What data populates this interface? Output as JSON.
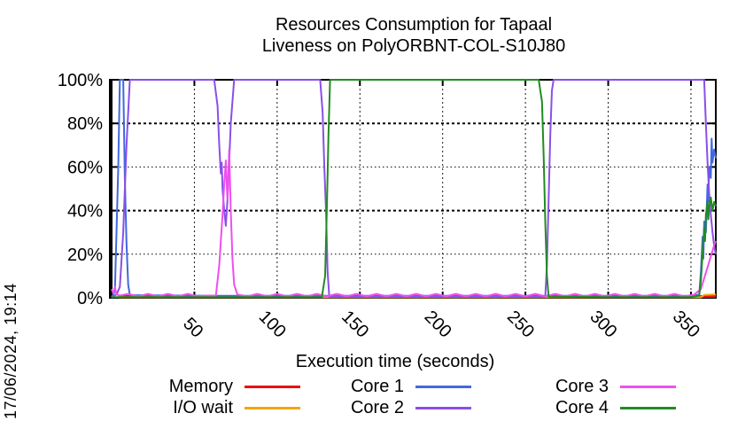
{
  "page": {
    "timestamp": "17/06/2024, 19:14"
  },
  "chart_data": {
    "type": "line",
    "title": "Resources Consumption for Tapaal",
    "subtitle": "Liveness on PolyORBNT-COL-S10J80",
    "xlabel": "Execution time (seconds)",
    "ylabel": "",
    "xlim": [
      0,
      365
    ],
    "ylim": [
      0,
      100
    ],
    "xticks": [
      50,
      100,
      150,
      200,
      250,
      300,
      350
    ],
    "yticks": [
      0,
      20,
      40,
      60,
      80,
      100
    ],
    "ytick_suffix": "%",
    "grid": true,
    "legend_position": "bottom",
    "series": [
      {
        "name": "Memory",
        "color": "#e81010",
        "width": 3,
        "points": [
          [
            4,
            0.6
          ],
          [
            365,
            0.6
          ]
        ]
      },
      {
        "name": "I/O wait",
        "color": "#f5a50a",
        "width": 2,
        "points": [
          [
            4,
            0.25
          ],
          [
            356,
            0.25
          ],
          [
            358,
            1.3
          ],
          [
            365,
            1.5
          ]
        ]
      },
      {
        "name": "Core 1",
        "color": "#4169e1",
        "width": 2,
        "points": [
          [
            0,
            0
          ],
          [
            2,
            3
          ],
          [
            4,
            60
          ],
          [
            5,
            100
          ],
          [
            7,
            100
          ],
          [
            8,
            55
          ],
          [
            9,
            25
          ],
          [
            10,
            6
          ],
          [
            11,
            1.2
          ],
          [
            60,
            0.9
          ],
          [
            120,
            0.9
          ],
          [
            180,
            0.9
          ],
          [
            240,
            0.9
          ],
          [
            300,
            0.9
          ],
          [
            350,
            0.9
          ],
          [
            355,
            1.5
          ],
          [
            356,
            12
          ],
          [
            357,
            28
          ],
          [
            357.5,
            18
          ],
          [
            358,
            35
          ],
          [
            359,
            30
          ],
          [
            360,
            52
          ],
          [
            360.5,
            44
          ],
          [
            361,
            60
          ],
          [
            362,
            55
          ],
          [
            362.5,
            73
          ],
          [
            363,
            62
          ],
          [
            364,
            68
          ],
          [
            365,
            64
          ]
        ]
      },
      {
        "name": "Core 2",
        "color": "#8a4fe8",
        "width": 2,
        "points": [
          [
            0,
            0.5
          ],
          [
            3,
            1.5
          ],
          [
            5,
            5
          ],
          [
            7,
            30
          ],
          [
            9,
            70
          ],
          [
            11,
            100
          ],
          [
            62,
            100
          ],
          [
            64,
            88
          ],
          [
            65,
            70
          ],
          [
            66,
            57
          ],
          [
            66.5,
            62
          ],
          [
            67,
            50
          ],
          [
            68,
            40
          ],
          [
            69,
            33
          ],
          [
            70,
            45
          ],
          [
            71,
            62
          ],
          [
            72,
            80
          ],
          [
            74,
            100
          ],
          [
            126,
            100
          ],
          [
            127.5,
            85
          ],
          [
            128.5,
            60
          ],
          [
            129.5,
            40
          ],
          [
            130.5,
            12
          ],
          [
            131.5,
            0.5
          ],
          [
            260,
            0.5
          ],
          [
            262,
            0.5
          ],
          [
            263,
            15
          ],
          [
            264,
            45
          ],
          [
            265,
            75
          ],
          [
            266,
            95
          ],
          [
            267,
            100
          ],
          [
            356,
            100
          ],
          [
            358,
            100
          ],
          [
            359,
            80
          ],
          [
            360,
            62
          ],
          [
            361,
            48
          ],
          [
            362,
            38
          ],
          [
            363,
            30
          ],
          [
            364,
            24
          ],
          [
            365,
            20
          ]
        ]
      },
      {
        "name": "Core 3",
        "color": "#ee4fee",
        "width": 2,
        "points": [
          [
            0,
            4
          ],
          [
            1,
            2
          ],
          [
            2,
            5
          ],
          [
            3,
            1.5
          ],
          [
            5,
            1
          ],
          [
            10,
            1.8
          ],
          [
            16,
            0.7
          ],
          [
            22,
            1.8
          ],
          [
            28,
            0.7
          ],
          [
            34,
            1.8
          ],
          [
            40,
            0.7
          ],
          [
            46,
            1.8
          ],
          [
            52,
            0.7
          ],
          [
            58,
            1
          ],
          [
            63,
            1
          ],
          [
            65,
            15
          ],
          [
            67,
            38
          ],
          [
            68,
            52
          ],
          [
            69,
            63
          ],
          [
            69.5,
            52
          ],
          [
            70,
            45
          ],
          [
            70.5,
            56
          ],
          [
            71,
            68
          ],
          [
            72,
            40
          ],
          [
            73,
            18
          ],
          [
            74,
            6
          ],
          [
            76,
            1.5
          ],
          [
            82,
            0.7
          ],
          [
            88,
            1.8
          ],
          [
            94,
            0.7
          ],
          [
            100,
            1.8
          ],
          [
            106,
            0.7
          ],
          [
            112,
            1.8
          ],
          [
            118,
            0.7
          ],
          [
            124,
            1.8
          ],
          [
            130,
            0.7
          ],
          [
            136,
            1.8
          ],
          [
            142,
            0.7
          ],
          [
            148,
            1.8
          ],
          [
            154,
            0.7
          ],
          [
            160,
            1.8
          ],
          [
            166,
            0.7
          ],
          [
            172,
            1.8
          ],
          [
            178,
            0.7
          ],
          [
            184,
            1.8
          ],
          [
            190,
            0.7
          ],
          [
            196,
            1.8
          ],
          [
            202,
            0.7
          ],
          [
            208,
            1.8
          ],
          [
            214,
            0.7
          ],
          [
            220,
            1.8
          ],
          [
            226,
            0.7
          ],
          [
            232,
            1.8
          ],
          [
            238,
            0.7
          ],
          [
            244,
            1.8
          ],
          [
            250,
            0.7
          ],
          [
            256,
            1.8
          ],
          [
            262,
            0.7
          ],
          [
            268,
            1.8
          ],
          [
            274,
            0.7
          ],
          [
            280,
            1.8
          ],
          [
            286,
            0.7
          ],
          [
            292,
            1.8
          ],
          [
            298,
            0.7
          ],
          [
            304,
            1.8
          ],
          [
            310,
            0.7
          ],
          [
            316,
            1.8
          ],
          [
            322,
            0.7
          ],
          [
            328,
            1.8
          ],
          [
            334,
            0.7
          ],
          [
            340,
            1.8
          ],
          [
            346,
            0.7
          ],
          [
            352,
            1.5
          ],
          [
            356,
            4
          ],
          [
            358,
            9
          ],
          [
            360,
            14
          ],
          [
            362,
            19
          ],
          [
            364,
            24
          ],
          [
            365,
            26
          ]
        ]
      },
      {
        "name": "Core 4",
        "color": "#228b22",
        "width": 2,
        "points": [
          [
            0,
            0.3
          ],
          [
            126,
            0.3
          ],
          [
            127,
            0.3
          ],
          [
            129,
            10
          ],
          [
            130,
            40
          ],
          [
            131,
            75
          ],
          [
            132,
            100
          ],
          [
            258,
            100
          ],
          [
            260,
            90
          ],
          [
            261,
            65
          ],
          [
            262,
            35
          ],
          [
            263,
            10
          ],
          [
            264,
            0.5
          ],
          [
            300,
            0.3
          ],
          [
            350,
            0.3
          ],
          [
            355,
            1
          ],
          [
            356,
            8
          ],
          [
            357,
            20
          ],
          [
            358,
            32
          ],
          [
            358.5,
            26
          ],
          [
            359,
            38
          ],
          [
            360,
            44
          ],
          [
            360.5,
            36
          ],
          [
            361,
            42
          ],
          [
            362,
            46
          ],
          [
            363,
            40
          ],
          [
            364,
            44
          ],
          [
            365,
            42
          ]
        ]
      }
    ]
  }
}
